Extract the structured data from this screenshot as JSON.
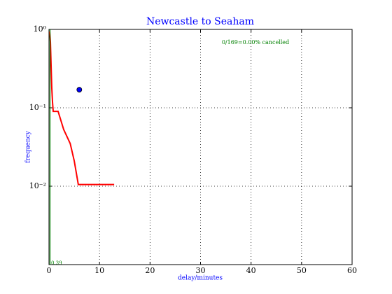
{
  "chart_data": {
    "type": "line",
    "title": "Newcastle to Seaham",
    "x_label": "delay/minutes",
    "y_label": "frequency",
    "annotations": [
      "0/169=0.00% cancelled",
      "0.39"
    ],
    "log_y": true,
    "grid": true,
    "xlim": [
      0,
      60
    ],
    "xticks": [
      0,
      10,
      20,
      30,
      40,
      50,
      60
    ],
    "ylim": [
      0.001,
      1
    ],
    "yticks": [
      {
        "value": 1,
        "label": "10⁰"
      },
      {
        "value": 0.1,
        "label": "10⁻¹"
      },
      {
        "value": 0.01,
        "label": "10⁻²"
      }
    ],
    "series": [
      {
        "color": "#ff0000",
        "x": [
          0.14,
          0.28,
          0.42,
          0.55,
          0.69,
          0.83,
          1.8,
          2.9,
          4.2,
          5.0,
          5.8,
          12.9
        ],
        "values": [
          0.94,
          0.69,
          0.34,
          0.18,
          0.12,
          0.09,
          0.09,
          0.053,
          0.035,
          0.021,
          0.0105,
          0.0105
        ]
      },
      {
        "color": "#008000",
        "x": [
          0.2,
          0.2
        ],
        "values": [
          1,
          0.001
        ]
      }
    ],
    "points": {
      "color": "#0000ff",
      "x": [
        6
      ],
      "values": [
        0.17
      ]
    }
  }
}
